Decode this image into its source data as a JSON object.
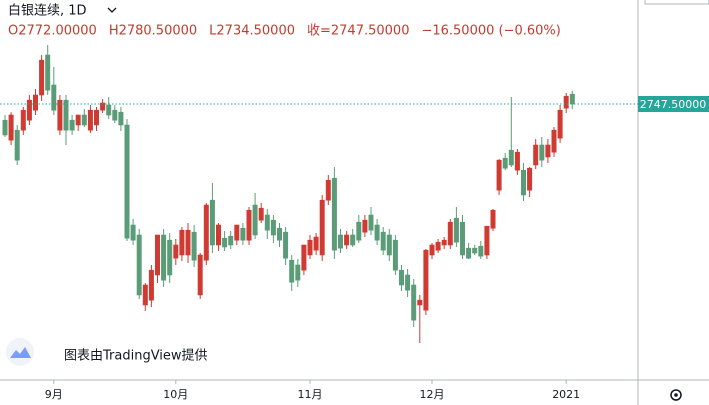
{
  "header": {
    "symbol": "白银连续, 1D",
    "ohlc": [
      "O2772.00000",
      "H2780.50000",
      "L2734.50000",
      "收=2747.50000",
      "−16.50000 (−0.60%)"
    ]
  },
  "watermark": "图表由TradingView提供",
  "chart_data": {
    "type": "candlestick",
    "categories": [
      null,
      null,
      null,
      null,
      null,
      null,
      null,
      null,
      "9月",
      null,
      null,
      null,
      null,
      null,
      null,
      null,
      null,
      null,
      null,
      null,
      null,
      null,
      null,
      null,
      null,
      null,
      null,
      null,
      "10月",
      null,
      null,
      null,
      null,
      null,
      null,
      null,
      null,
      null,
      null,
      null,
      null,
      null,
      null,
      null,
      null,
      null,
      null,
      null,
      null,
      null,
      "11月",
      null,
      null,
      null,
      null,
      null,
      null,
      null,
      null,
      null,
      null,
      null,
      null,
      null,
      null,
      null,
      null,
      null,
      null,
      null,
      "12月",
      null,
      null,
      null,
      null,
      null,
      null,
      null,
      null,
      null,
      null,
      null,
      null,
      null,
      null,
      null,
      null,
      null,
      null,
      null,
      null,
      null,
      "2021",
      null
    ],
    "open": [
      2707,
      2657,
      2682,
      2682,
      2707,
      2732,
      2770,
      2870,
      2795,
      2682,
      2757,
      2707,
      2695,
      2720,
      2682,
      2695,
      2732,
      2745,
      2732,
      2727,
      2695,
      2445,
      2420,
      2245,
      2257,
      2320,
      2420,
      2407,
      2362,
      2370,
      2370,
      2427,
      2270,
      2357,
      2507,
      2395,
      2412,
      2417,
      2407,
      2437,
      2407,
      2495,
      2457,
      2470,
      2457,
      2437,
      2427,
      2357,
      2345,
      2332,
      2370,
      2382,
      2370,
      2507,
      2562,
      2420,
      2395,
      2420,
      2452,
      2427,
      2470,
      2445,
      2427,
      2420,
      2407,
      2332,
      2320,
      2295,
      2245,
      2232,
      2370,
      2382,
      2395,
      2395,
      2462,
      2452,
      2387,
      2387,
      2392,
      2370,
      2437,
      2532,
      2612,
      2632,
      2582,
      2582,
      2532,
      2595,
      2645,
      2615,
      2627,
      2662,
      2737,
      2772
    ],
    "high": [
      2720,
      2727,
      2695,
      2740,
      2770,
      2785,
      2870,
      2895,
      2840,
      2770,
      2770,
      2720,
      2720,
      2735,
      2745,
      2740,
      2760,
      2765,
      2745,
      2740,
      2710,
      2460,
      2435,
      2300,
      2345,
      2420,
      2435,
      2425,
      2410,
      2440,
      2450,
      2445,
      2375,
      2500,
      2550,
      2450,
      2430,
      2430,
      2445,
      2450,
      2490,
      2525,
      2500,
      2485,
      2470,
      2450,
      2440,
      2370,
      2360,
      2395,
      2420,
      2425,
      2520,
      2570,
      2590,
      2435,
      2430,
      2435,
      2470,
      2470,
      2490,
      2460,
      2440,
      2435,
      2420,
      2345,
      2335,
      2310,
      2270,
      2385,
      2400,
      2410,
      2415,
      2460,
      2490,
      2470,
      2400,
      2395,
      2405,
      2440,
      2485,
      2610,
      2625,
      2765,
      2635,
      2600,
      2590,
      2660,
      2665,
      2660,
      2690,
      2745,
      2775,
      2780.5
    ],
    "low": [
      2665,
      2645,
      2595,
      2670,
      2695,
      2720,
      2755,
      2770,
      2720,
      2670,
      2645,
      2670,
      2680,
      2690,
      2675,
      2680,
      2725,
      2710,
      2700,
      2680,
      2405,
      2395,
      2260,
      2230,
      2240,
      2300,
      2290,
      2300,
      2345,
      2355,
      2350,
      2340,
      2260,
      2345,
      2375,
      2380,
      2380,
      2385,
      2395,
      2395,
      2395,
      2410,
      2450,
      2410,
      2400,
      2390,
      2345,
      2280,
      2290,
      2320,
      2360,
      2370,
      2355,
      2495,
      2360,
      2375,
      2385,
      2390,
      2400,
      2415,
      2420,
      2395,
      2370,
      2355,
      2320,
      2280,
      2265,
      2190,
      2150,
      2220,
      2360,
      2375,
      2385,
      2385,
      2390,
      2360,
      2360,
      2370,
      2360,
      2360,
      2430,
      2520,
      2582,
      2590,
      2570,
      2505,
      2515,
      2585,
      2590,
      2600,
      2615,
      2650,
      2725,
      2734.5
    ],
    "close": [
      2670,
      2720,
      2607,
      2732,
      2757,
      2770,
      2857,
      2782,
      2732,
      2757,
      2682,
      2682,
      2720,
      2695,
      2732,
      2732,
      2750,
      2720,
      2707,
      2695,
      2412,
      2407,
      2270,
      2295,
      2332,
      2420,
      2307,
      2320,
      2395,
      2432,
      2432,
      2357,
      2370,
      2495,
      2395,
      2445,
      2390,
      2395,
      2445,
      2407,
      2482,
      2420,
      2487,
      2432,
      2420,
      2407,
      2362,
      2302,
      2307,
      2395,
      2407,
      2415,
      2507,
      2557,
      2382,
      2387,
      2420,
      2395,
      2407,
      2457,
      2432,
      2407,
      2382,
      2370,
      2332,
      2295,
      2282,
      2207,
      2257,
      2382,
      2395,
      2402,
      2407,
      2452,
      2402,
      2370,
      2362,
      2375,
      2367,
      2442,
      2482,
      2607,
      2587,
      2595,
      2627,
      2520,
      2587,
      2645,
      2607,
      2645,
      2682,
      2732,
      2767,
      2747.5
    ],
    "up_color": "#cf3b32",
    "down_color": "#5b9c78",
    "ylim": [
      2057.5,
      3007.5
    ],
    "last_price": 2747.5,
    "last_price_label": "2747.50000",
    "last_price_color": "#26a69a"
  }
}
